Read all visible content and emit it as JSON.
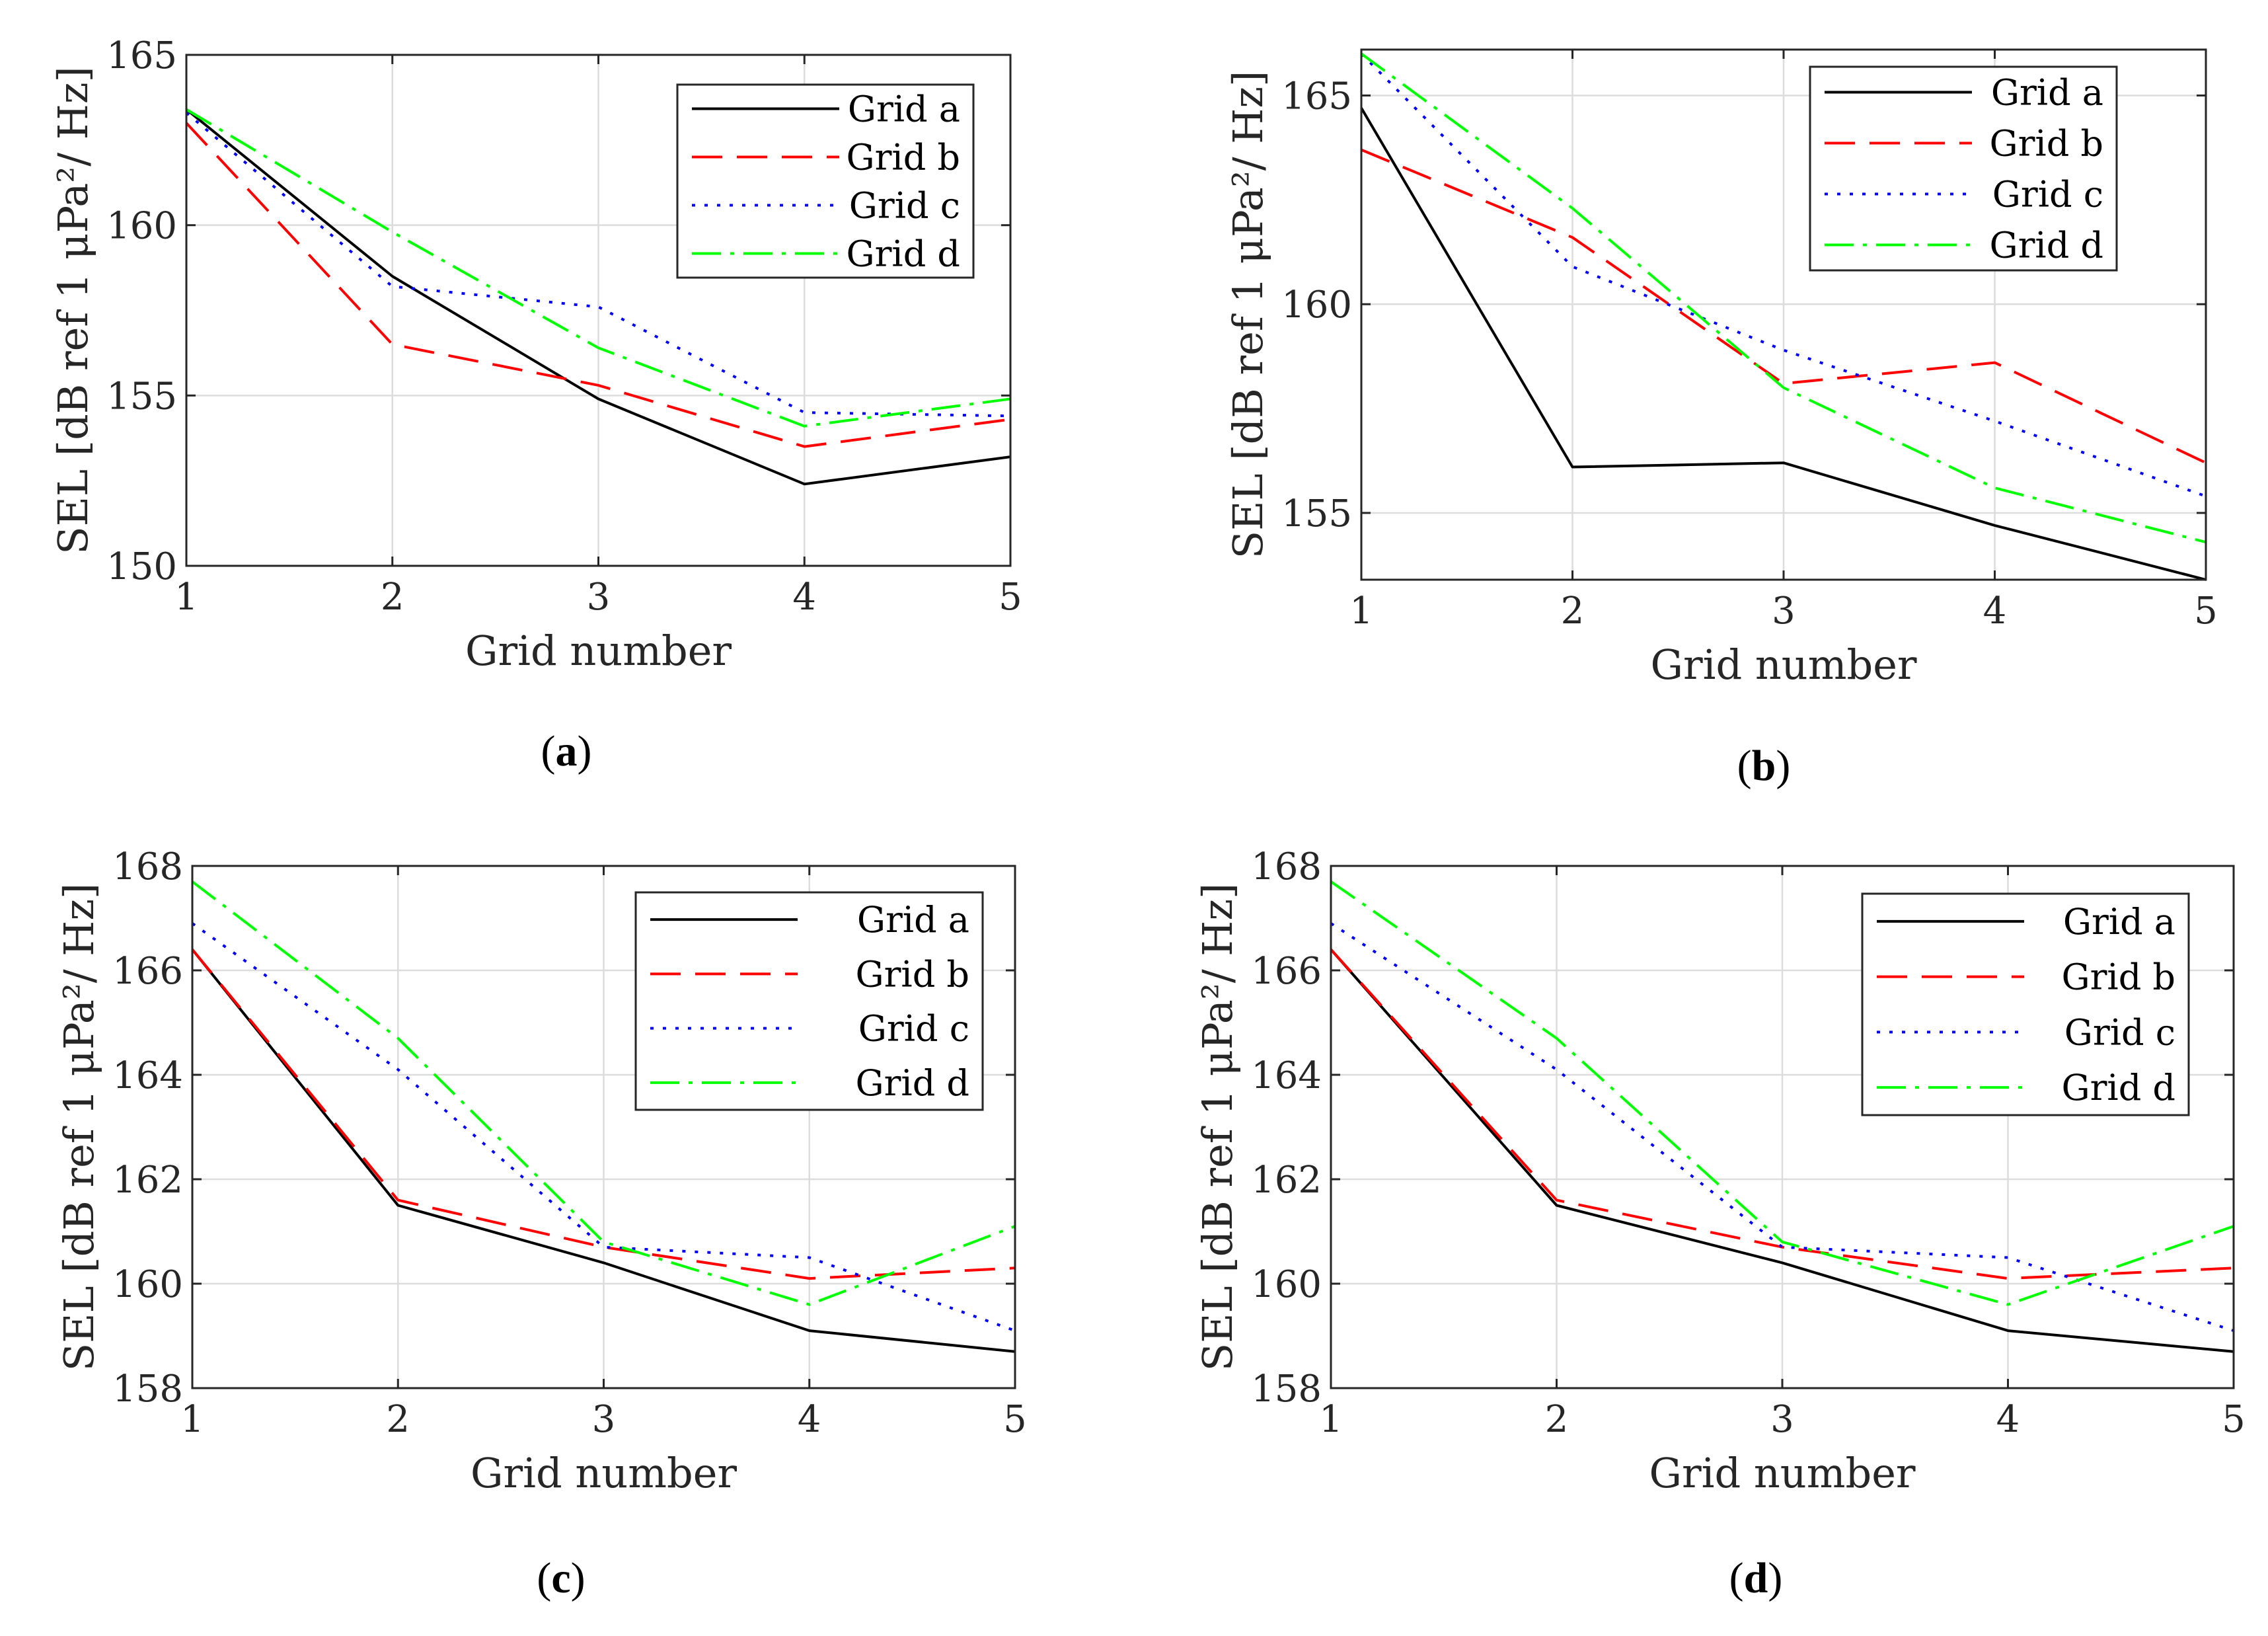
{
  "chart_data": [
    {
      "type": "line",
      "id": "a",
      "caption": "a",
      "xlabel": "Grid number",
      "ylabel": "SEL [dB ref 1 μPa²/ Hz]",
      "xlim": [
        1,
        5
      ],
      "ylim": [
        150,
        165
      ],
      "xticks": [
        1,
        2,
        3,
        4,
        5
      ],
      "yticks": [
        150,
        155,
        160,
        165
      ],
      "grid": true,
      "legend_position": "top-right",
      "x": [
        1,
        2,
        3,
        4,
        5
      ],
      "series": [
        {
          "name": "Grid a",
          "values": [
            163.4,
            158.5,
            154.9,
            152.4,
            153.2
          ]
        },
        {
          "name": "Grid b",
          "values": [
            163.0,
            156.5,
            155.3,
            153.5,
            154.3
          ]
        },
        {
          "name": "Grid c",
          "values": [
            163.3,
            158.2,
            157.6,
            154.5,
            154.4
          ]
        },
        {
          "name": "Grid d",
          "values": [
            163.4,
            159.8,
            156.4,
            154.1,
            154.9
          ]
        }
      ]
    },
    {
      "type": "line",
      "id": "b",
      "caption": "b",
      "xlabel": "Grid number",
      "ylabel": "SEL [dB ref 1 μPa²/ Hz]",
      "xlim": [
        1,
        5
      ],
      "ylim": [
        153.4,
        166.1
      ],
      "xticks": [
        1,
        2,
        3,
        4,
        5
      ],
      "yticks": [
        155,
        160,
        165
      ],
      "grid": true,
      "legend_position": "top-right",
      "x": [
        1,
        2,
        3,
        4,
        5
      ],
      "series": [
        {
          "name": "Grid a",
          "values": [
            164.7,
            156.1,
            156.2,
            154.7,
            153.4
          ]
        },
        {
          "name": "Grid b",
          "values": [
            163.7,
            161.6,
            158.1,
            158.6,
            156.2
          ]
        },
        {
          "name": "Grid c",
          "values": [
            166.0,
            160.9,
            158.9,
            157.2,
            155.4
          ]
        },
        {
          "name": "Grid d",
          "values": [
            166.0,
            162.3,
            158.0,
            155.6,
            154.3
          ]
        }
      ]
    },
    {
      "type": "line",
      "id": "c",
      "caption": "c",
      "xlabel": "Grid number",
      "ylabel": "SEL [dB ref 1 μPa²/ Hz]",
      "xlim": [
        1,
        5
      ],
      "ylim": [
        158,
        168
      ],
      "xticks": [
        1,
        2,
        3,
        4,
        5
      ],
      "yticks": [
        158,
        160,
        162,
        164,
        166,
        168
      ],
      "grid": true,
      "legend_position": "top-right",
      "x": [
        1,
        2,
        3,
        4,
        5
      ],
      "series": [
        {
          "name": "Grid a",
          "values": [
            166.4,
            161.5,
            160.4,
            159.1,
            158.7
          ]
        },
        {
          "name": "Grid b",
          "values": [
            166.4,
            161.6,
            160.7,
            160.1,
            160.3
          ]
        },
        {
          "name": "Grid c",
          "values": [
            166.9,
            164.1,
            160.7,
            160.5,
            159.1
          ]
        },
        {
          "name": "Grid d",
          "values": [
            167.7,
            164.7,
            160.8,
            159.6,
            161.1
          ]
        }
      ]
    },
    {
      "type": "line",
      "id": "d",
      "caption": "d",
      "xlabel": "Grid number",
      "ylabel": "SEL [dB ref 1 μPa²/ Hz]",
      "xlim": [
        1,
        5
      ],
      "ylim": [
        158,
        168
      ],
      "xticks": [
        1,
        2,
        3,
        4,
        5
      ],
      "yticks": [
        158,
        160,
        162,
        164,
        166,
        168
      ],
      "grid": true,
      "legend_position": "top-right",
      "x": [
        1,
        2,
        3,
        4,
        5
      ],
      "series": [
        {
          "name": "Grid a",
          "values": [
            166.4,
            161.5,
            160.4,
            159.1,
            158.7
          ]
        },
        {
          "name": "Grid b",
          "values": [
            166.4,
            161.6,
            160.7,
            160.1,
            160.3
          ]
        },
        {
          "name": "Grid c",
          "values": [
            166.9,
            164.1,
            160.7,
            160.5,
            159.1
          ]
        },
        {
          "name": "Grid d",
          "values": [
            167.7,
            164.7,
            160.8,
            159.6,
            161.1
          ]
        }
      ]
    }
  ],
  "series_styles": [
    {
      "name": "Grid a",
      "color": "#000000",
      "dash": "solid"
    },
    {
      "name": "Grid b",
      "color": "#ff0000",
      "dash": "dashed"
    },
    {
      "name": "Grid c",
      "color": "#0000ff",
      "dash": "dotted"
    },
    {
      "name": "Grid d",
      "color": "#00ff00",
      "dash": "dashdot"
    }
  ]
}
